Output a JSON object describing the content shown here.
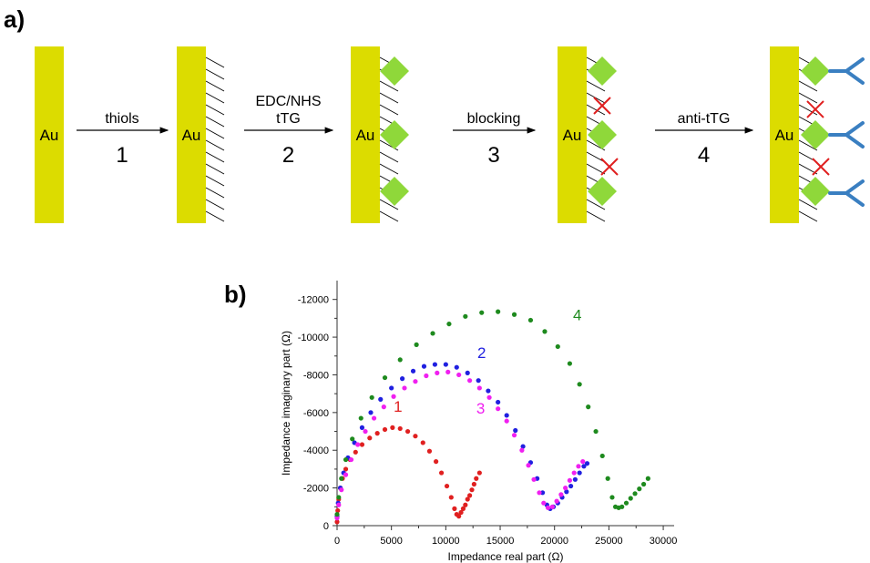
{
  "panel_a": {
    "label": "a)",
    "surface_label": "Au",
    "steps": [
      {
        "lines": [
          "thiols"
        ],
        "number": "1"
      },
      {
        "lines": [
          "EDC/NHS",
          "tTG"
        ],
        "number": "2"
      },
      {
        "lines": [
          "blocking"
        ],
        "number": "3"
      },
      {
        "lines": [
          "anti-tTG"
        ],
        "number": "4"
      }
    ],
    "colors": {
      "gold": "#dcdc00",
      "protein": "#8fd83a",
      "antibody": "#3a7fc1",
      "blocked": "#e02020"
    }
  },
  "panel_b": {
    "label": "b)",
    "chart_data": {
      "type": "scatter",
      "xlabel": "Impedance real part (Ω)",
      "ylabel": "Impedance imaginary part (Ω)",
      "xlim": [
        0,
        31000
      ],
      "ylim": [
        0,
        -13000
      ],
      "xticks": [
        0,
        5000,
        10000,
        15000,
        20000,
        25000,
        30000
      ],
      "yticks": [
        0,
        -2000,
        -4000,
        -6000,
        -8000,
        -10000,
        -12000
      ],
      "series": [
        {
          "name": "1",
          "color": "#e02020",
          "x": [
            0,
            60,
            150,
            300,
            500,
            800,
            1200,
            1700,
            2300,
            3000,
            3700,
            4400,
            5100,
            5800,
            6500,
            7200,
            7900,
            8500,
            9100,
            9600,
            10100,
            10500,
            10800,
            11000,
            11200,
            11400,
            11600,
            11800,
            12000,
            12200,
            12400,
            12600,
            12800,
            13100
          ],
          "y": [
            -200,
            -800,
            -1400,
            -2000,
            -2500,
            -3000,
            -3500,
            -3900,
            -4300,
            -4650,
            -4900,
            -5100,
            -5200,
            -5150,
            -5000,
            -4750,
            -4400,
            -3950,
            -3400,
            -2800,
            -2100,
            -1500,
            -900,
            -600,
            -500,
            -700,
            -900,
            -1100,
            -1400,
            -1600,
            -1900,
            -2200,
            -2500,
            -2800
          ]
        },
        {
          "name": "2",
          "color": "#2020e0",
          "x": [
            0,
            100,
            300,
            600,
            1000,
            1600,
            2300,
            3100,
            4000,
            5000,
            6000,
            7000,
            8000,
            9000,
            10000,
            11000,
            12000,
            13000,
            13900,
            14800,
            15600,
            16400,
            17100,
            17800,
            18400,
            18900,
            19300,
            19600,
            19900,
            20300,
            20700,
            21100,
            21500,
            21900,
            22300,
            22700,
            23000
          ],
          "y": [
            -500,
            -1200,
            -2000,
            -2800,
            -3600,
            -4400,
            -5200,
            -6000,
            -6700,
            -7300,
            -7800,
            -8200,
            -8450,
            -8550,
            -8550,
            -8400,
            -8100,
            -7700,
            -7150,
            -6550,
            -5850,
            -5050,
            -4200,
            -3350,
            -2500,
            -1750,
            -1100,
            -900,
            -1000,
            -1200,
            -1500,
            -1800,
            -2100,
            -2450,
            -2800,
            -3150,
            -3300
          ]
        },
        {
          "name": "3",
          "color": "#f020f0",
          "x": [
            0,
            150,
            400,
            800,
            1300,
            1900,
            2600,
            3400,
            4300,
            5200,
            6200,
            7200,
            8200,
            9200,
            10200,
            11200,
            12200,
            13100,
            14000,
            14800,
            15600,
            16300,
            17000,
            17600,
            18100,
            18600,
            19000,
            19400,
            19800,
            20200,
            20600,
            21000,
            21400,
            21800,
            22200,
            22600
          ],
          "y": [
            -400,
            -1100,
            -1900,
            -2700,
            -3500,
            -4300,
            -5000,
            -5700,
            -6300,
            -6850,
            -7300,
            -7650,
            -7950,
            -8100,
            -8150,
            -8000,
            -7700,
            -7300,
            -6800,
            -6200,
            -5550,
            -4800,
            -4000,
            -3200,
            -2450,
            -1750,
            -1200,
            -950,
            -1000,
            -1300,
            -1650,
            -2000,
            -2400,
            -2800,
            -3150,
            -3400
          ]
        },
        {
          "name": "4",
          "color": "#1e8a1e",
          "x": [
            0,
            150,
            400,
            800,
            1400,
            2200,
            3200,
            4400,
            5800,
            7300,
            8800,
            10300,
            11800,
            13300,
            14800,
            16300,
            17800,
            19100,
            20300,
            21400,
            22300,
            23100,
            23800,
            24400,
            24900,
            25300,
            25600,
            25900,
            26200,
            26600,
            27000,
            27400,
            27800,
            28200,
            28600
          ],
          "y": [
            -600,
            -1500,
            -2500,
            -3500,
            -4600,
            -5700,
            -6800,
            -7850,
            -8800,
            -9600,
            -10200,
            -10700,
            -11100,
            -11300,
            -11350,
            -11200,
            -10900,
            -10300,
            -9500,
            -8600,
            -7500,
            -6300,
            -5000,
            -3700,
            -2500,
            -1500,
            -1000,
            -950,
            -1000,
            -1200,
            -1450,
            -1700,
            -1950,
            -2200,
            -2500
          ]
        }
      ]
    }
  }
}
